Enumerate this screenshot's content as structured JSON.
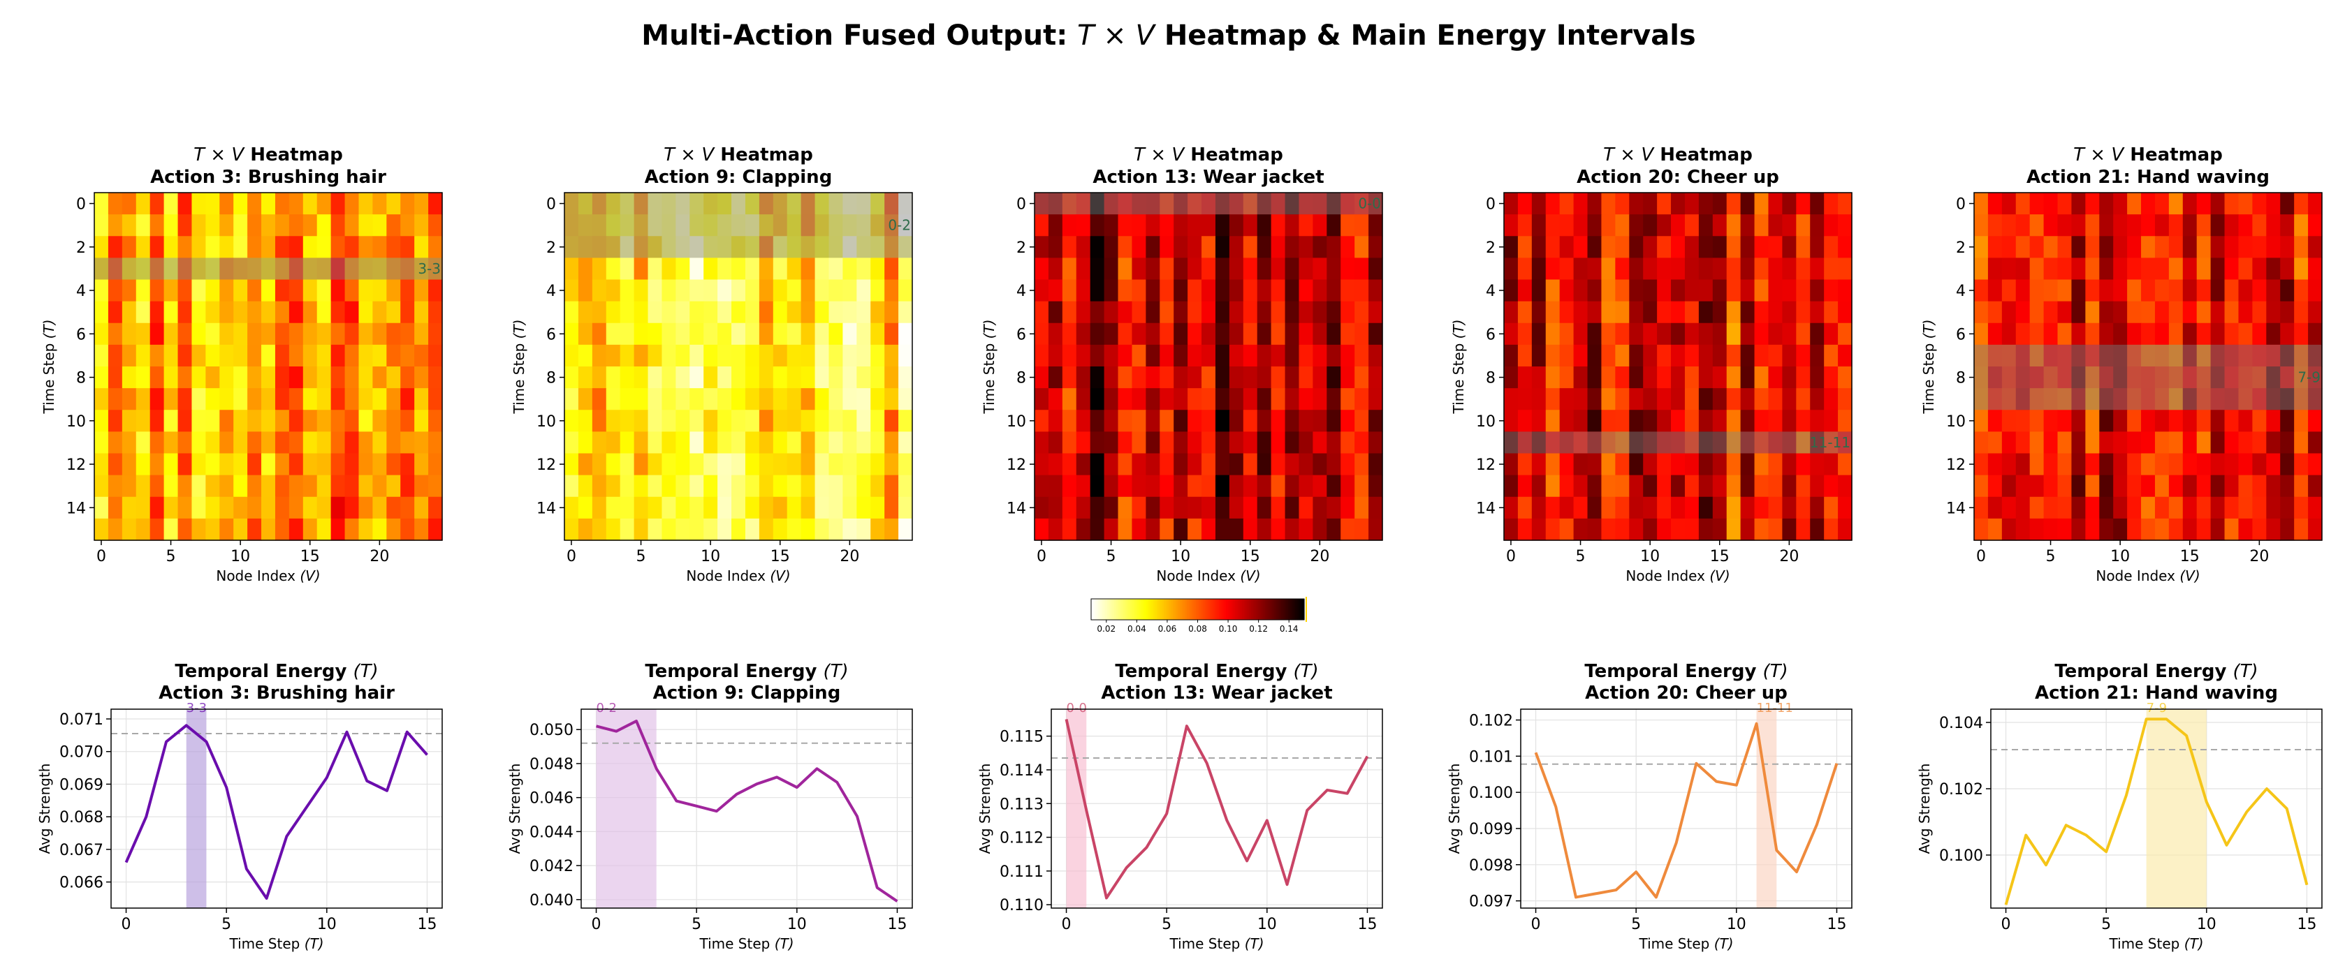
{
  "chart_data": {
    "type": "heatmap",
    "title": "Multi-Action Fused Output: T × V Heatmap & Main Energy Intervals",
    "title_parts": {
      "prefix": "Multi-Action Fused Output: ",
      "t": "T",
      "times": " × ",
      "v": "V",
      "suffix": " Heatmap & Main Energy Intervals"
    },
    "heatmap_title_line1": {
      "t": "T",
      "times": " × ",
      "v": "V",
      "suffix": " Heatmap"
    },
    "energy_title_line1": {
      "prefix": "Temporal Energy ",
      "t": "(T)"
    },
    "heatmap_xlabel": {
      "prefix": "Node Index ",
      "v": "(V)"
    },
    "heatmap_ylabel": {
      "prefix": "Time Step ",
      "t": "(T)"
    },
    "energy_xlabel": {
      "prefix": "Time Step ",
      "t": "(T)"
    },
    "energy_ylabel": "Avg Strength",
    "heatmap_xticks": [
      "0",
      "5",
      "10",
      "15",
      "20"
    ],
    "heatmap_yticks": [
      "0",
      "2",
      "4",
      "6",
      "8",
      "10",
      "12",
      "14"
    ],
    "energy_xticks": [
      "0",
      "5",
      "10",
      "15"
    ],
    "grid_size": {
      "time_steps": 16,
      "nodes": 25
    },
    "colormap": "hot_r",
    "colorbar": {
      "min": 0.01,
      "max": 0.15,
      "ticks": [
        "0.02",
        "0.04",
        "0.06",
        "0.08",
        "0.10",
        "0.12",
        "0.14"
      ]
    },
    "actions": [
      {
        "name": "Action 3: Brushing hair",
        "heat_mean": 0.068,
        "heat_seed": 3,
        "interval": [
          3,
          3
        ],
        "interval_label": "3-3",
        "color": "#6a0dad",
        "span_color": "#b39ddb",
        "energy": [
          0.0666,
          0.068,
          0.0703,
          0.0708,
          0.0703,
          0.0689,
          0.0664,
          0.0655,
          0.0674,
          0.0683,
          0.0692,
          0.0706,
          0.0691,
          0.0688,
          0.0706,
          0.0699
        ],
        "threshold": 0.07055,
        "ylim": [
          0.0652,
          0.0713
        ],
        "yticks": [
          0.066,
          0.067,
          0.068,
          0.069,
          0.07,
          0.071
        ],
        "ytick_labels": [
          "0.066",
          "0.067",
          "0.068",
          "0.069",
          "0.070",
          "0.071"
        ]
      },
      {
        "name": "Action 9: Clapping",
        "heat_mean": 0.046,
        "heat_seed": 9,
        "interval": [
          0,
          2
        ],
        "interval_label": "0-2",
        "color": "#a0259c",
        "span_color": "#e1bee7",
        "energy": [
          0.0502,
          0.0499,
          0.0505,
          0.0477,
          0.0458,
          0.0455,
          0.0452,
          0.0462,
          0.0468,
          0.0472,
          0.0466,
          0.0477,
          0.0469,
          0.0449,
          0.0407,
          0.0399
        ],
        "threshold": 0.0492,
        "ylim": [
          0.0395,
          0.0512
        ],
        "yticks": [
          0.04,
          0.042,
          0.044,
          0.046,
          0.048,
          0.05
        ],
        "ytick_labels": [
          "0.040",
          "0.042",
          "0.044",
          "0.046",
          "0.048",
          "0.050"
        ]
      },
      {
        "name": "Action 13: Wear jacket",
        "heat_mean": 0.112,
        "heat_seed": 13,
        "interval": [
          0,
          0
        ],
        "interval_label": "0-0",
        "color": "#c94466",
        "span_color": "#f8bbd0",
        "energy": [
          0.1155,
          0.1128,
          0.1102,
          0.1111,
          0.1117,
          0.1127,
          0.1153,
          0.1142,
          0.1125,
          0.1113,
          0.1125,
          0.1106,
          0.1128,
          0.1134,
          0.1133,
          0.1144
        ],
        "threshold": 0.11435,
        "ylim": [
          0.1099,
          0.1158
        ],
        "yticks": [
          0.11,
          0.111,
          0.112,
          0.113,
          0.114,
          0.115
        ],
        "ytick_labels": [
          "0.110",
          "0.111",
          "0.112",
          "0.113",
          "0.114",
          "0.115"
        ]
      },
      {
        "name": "Action 20: Cheer up",
        "heat_mean": 0.1,
        "heat_seed": 20,
        "interval": [
          11,
          11
        ],
        "interval_label": "11-11",
        "color": "#ef8a3c",
        "span_color": "#fbd3c0",
        "energy": [
          0.1011,
          0.0996,
          0.0971,
          0.0972,
          0.0973,
          0.0978,
          0.0971,
          0.0986,
          0.1008,
          0.1003,
          0.1002,
          0.1019,
          0.0984,
          0.0978,
          0.0991,
          0.1008
        ],
        "threshold": 0.10078,
        "ylim": [
          0.0968,
          0.1023
        ],
        "yticks": [
          0.097,
          0.098,
          0.099,
          0.1,
          0.101,
          0.102
        ],
        "ytick_labels": [
          "0.097",
          "0.098",
          "0.099",
          "0.100",
          "0.101",
          "0.102"
        ]
      },
      {
        "name": "Action 21: Hand waving",
        "heat_mean": 0.102,
        "heat_seed": 21,
        "interval": [
          7,
          9
        ],
        "interval_label": "7-9",
        "color": "#f5c518",
        "span_color": "#fbe9a8",
        "energy": [
          0.0985,
          0.1006,
          0.0997,
          0.1009,
          0.1006,
          0.1001,
          0.1018,
          0.1041,
          0.1041,
          0.1036,
          0.1016,
          0.1003,
          0.1013,
          0.102,
          0.1014,
          0.0991
        ],
        "threshold": 0.10318,
        "ylim": [
          0.0984,
          0.1044
        ],
        "yticks": [
          0.1,
          0.102,
          0.104
        ],
        "ytick_labels": [
          "0.100",
          "0.102",
          "0.104"
        ]
      }
    ]
  }
}
